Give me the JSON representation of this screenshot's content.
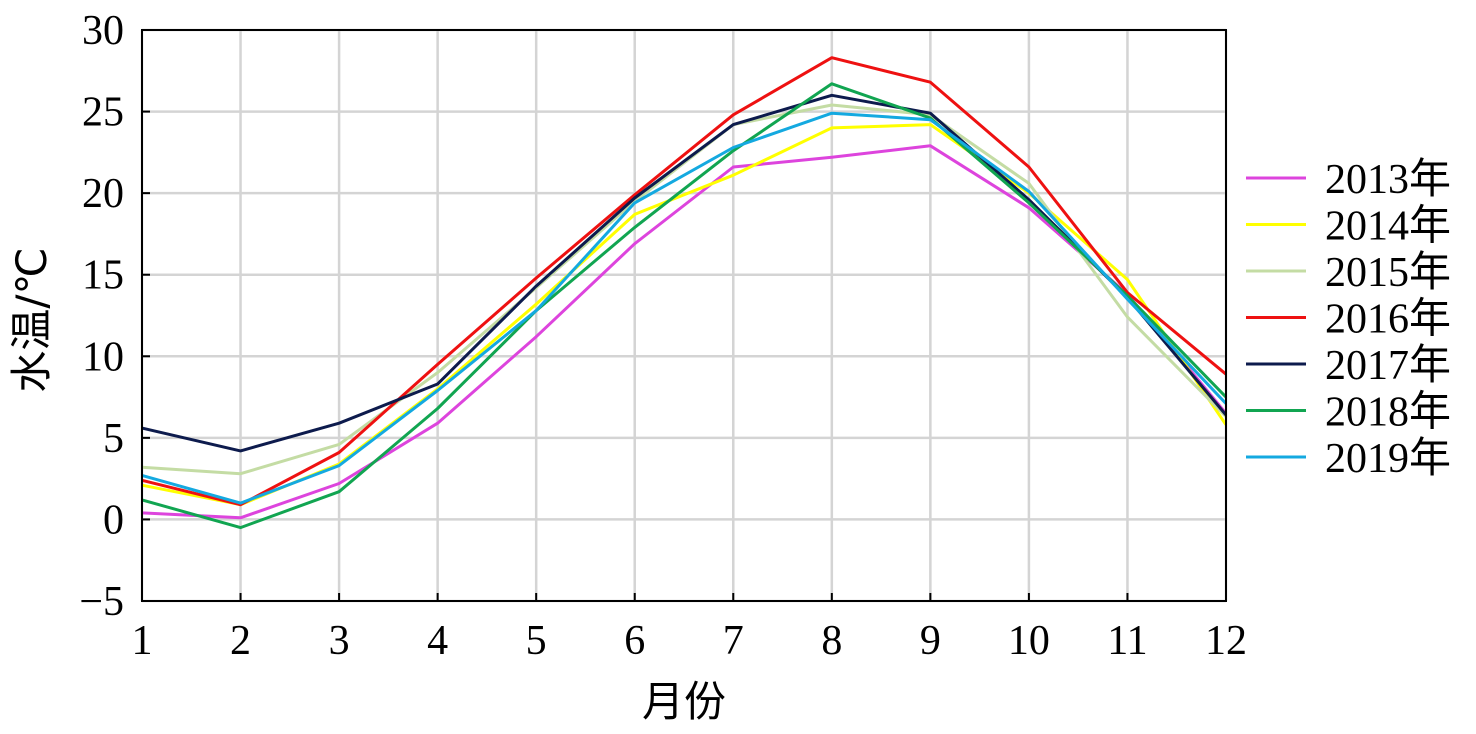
{
  "chart_data": {
    "type": "line",
    "title": "",
    "xlabel": "月份",
    "ylabel": "水温/℃",
    "x": [
      1,
      2,
      3,
      4,
      5,
      6,
      7,
      8,
      9,
      10,
      11,
      12
    ],
    "xlim": [
      1,
      12
    ],
    "ylim": [
      -5,
      30
    ],
    "yticks": [
      -5,
      0,
      5,
      10,
      15,
      20,
      25,
      30
    ],
    "ytick_labels": [
      "−5",
      "0",
      "5",
      "10",
      "15",
      "20",
      "25",
      "30"
    ],
    "grid": true,
    "legend_position": "right",
    "series": [
      {
        "name": "2013年",
        "color": "#dd44dd",
        "values": [
          0.4,
          0.1,
          2.2,
          5.9,
          11.2,
          16.9,
          21.6,
          22.2,
          22.9,
          19.1,
          13.8,
          6.5
        ]
      },
      {
        "name": "2014年",
        "color": "#ffff00",
        "values": [
          2.1,
          0.9,
          3.4,
          8.0,
          13.2,
          18.7,
          21.1,
          24.0,
          24.2,
          20.0,
          14.7,
          5.8
        ]
      },
      {
        "name": "2015年",
        "color": "#c4dca4",
        "values": [
          3.2,
          2.8,
          4.6,
          9.0,
          14.2,
          19.5,
          24.2,
          25.4,
          24.8,
          20.6,
          12.4,
          6.3
        ]
      },
      {
        "name": "2016年",
        "color": "#ee1111",
        "values": [
          2.4,
          0.9,
          4.1,
          9.5,
          14.8,
          19.9,
          24.8,
          28.3,
          26.8,
          21.6,
          13.9,
          8.9
        ]
      },
      {
        "name": "2017年",
        "color": "#0d1b4d",
        "values": [
          5.6,
          4.2,
          5.9,
          8.3,
          14.3,
          19.7,
          24.2,
          26.0,
          24.9,
          19.6,
          13.6,
          6.4
        ]
      },
      {
        "name": "2018年",
        "color": "#11a551",
        "values": [
          1.2,
          -0.5,
          1.7,
          6.8,
          12.8,
          17.9,
          22.6,
          26.7,
          24.6,
          19.4,
          13.7,
          7.5
        ]
      },
      {
        "name": "2019年",
        "color": "#14a9e0",
        "values": [
          2.7,
          1.0,
          3.3,
          7.9,
          12.8,
          19.4,
          22.8,
          24.9,
          24.5,
          20.1,
          13.5,
          7.1
        ]
      }
    ]
  }
}
